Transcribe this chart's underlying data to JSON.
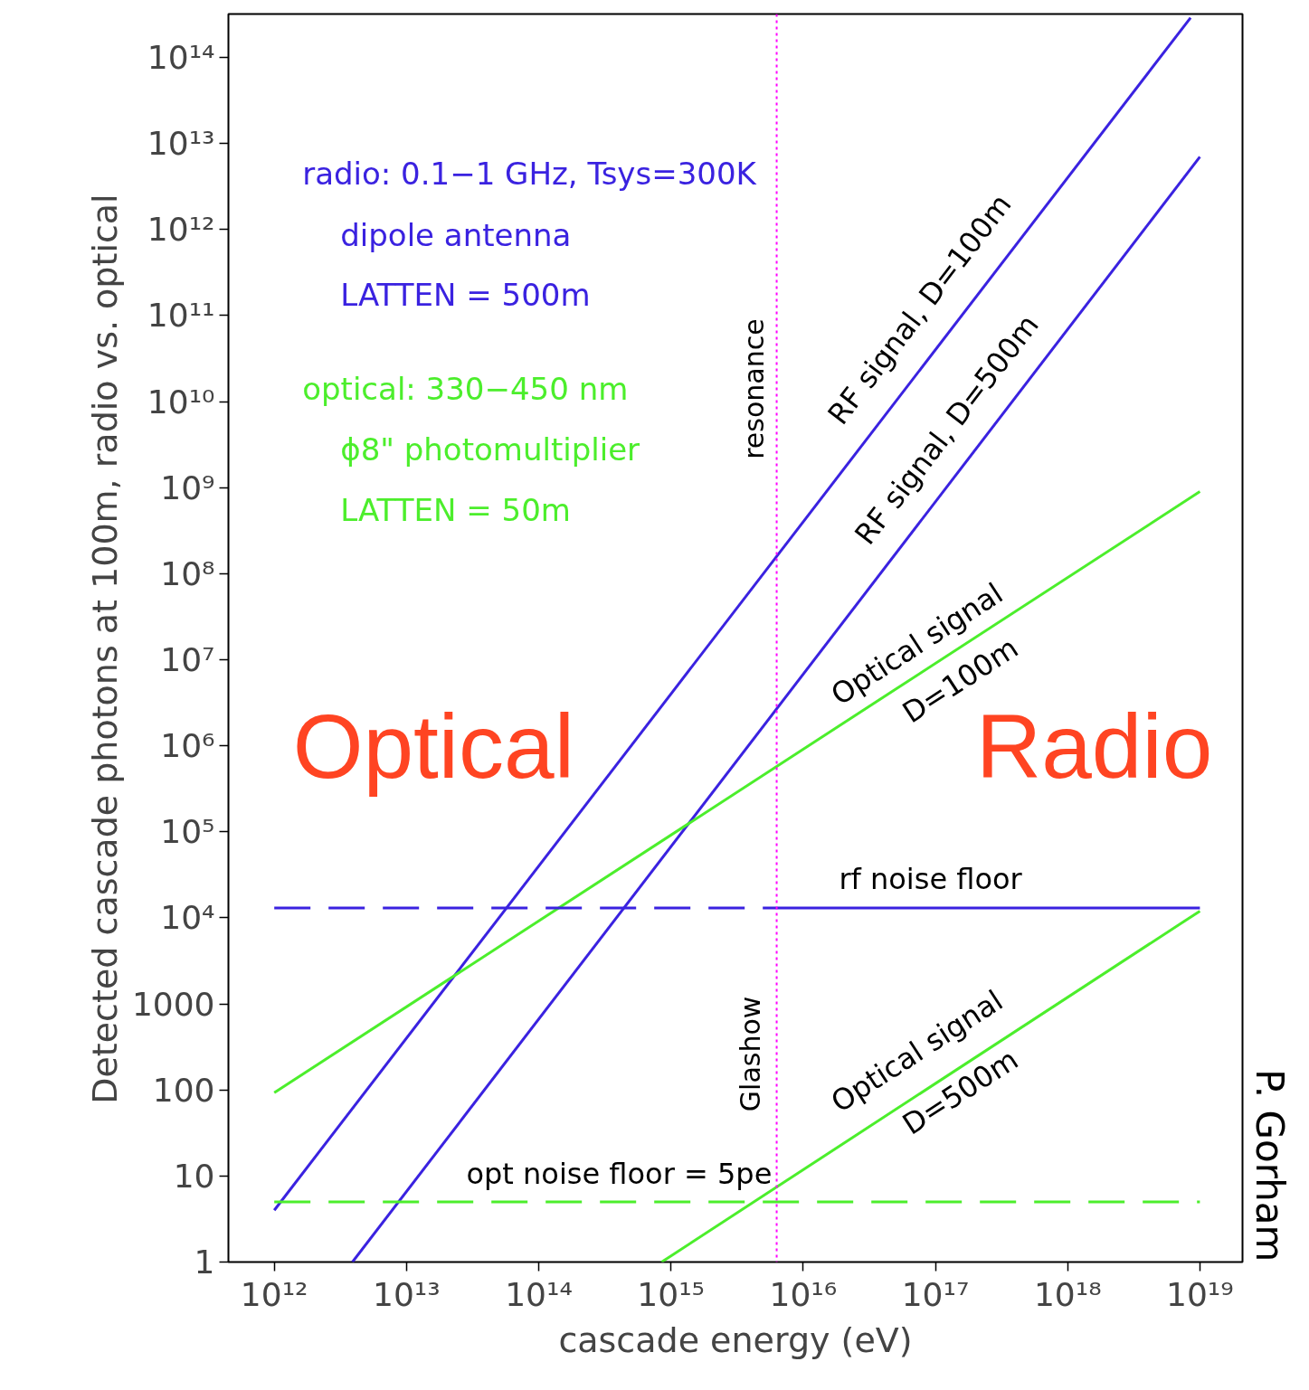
{
  "chart_data": {
    "type": "line",
    "xlabel": "cascade energy (eV)",
    "ylabel": "Detected cascade photons at 100m,   radio vs. optical",
    "log": "xy",
    "grid": false,
    "marker": "none",
    "xlim": [
      450000000000.0,
      2.1e+19
    ],
    "ylim": [
      1,
      320000000000000.0
    ],
    "xticks": [
      {
        "value": 1000000000000.0,
        "label": "10¹²"
      },
      {
        "value": 10000000000000.0,
        "label": "10¹³"
      },
      {
        "value": 100000000000000.0,
        "label": "10¹⁴"
      },
      {
        "value": 1000000000000000.0,
        "label": "10¹⁵"
      },
      {
        "value": 1e+16,
        "label": "10¹⁶"
      },
      {
        "value": 1e+17,
        "label": "10¹⁷"
      },
      {
        "value": 1e+18,
        "label": "10¹⁸"
      },
      {
        "value": 1e+19,
        "label": "10¹⁹"
      }
    ],
    "yticks": [
      1,
      10,
      100,
      1000,
      {
        "value": 10000.0,
        "label": "10⁴"
      },
      {
        "value": 100000.0,
        "label": "10⁵"
      },
      {
        "value": 1000000.0,
        "label": "10⁶"
      },
      {
        "value": 10000000.0,
        "label": "10⁷"
      },
      {
        "value": 100000000.0,
        "label": "10⁸"
      },
      {
        "value": 1000000000.0,
        "label": "10⁹"
      },
      {
        "value": 10000000000.0,
        "label": "10¹⁰"
      },
      {
        "value": 100000000000.0,
        "label": "10¹¹"
      },
      {
        "value": 1000000000000.0,
        "label": "10¹²"
      },
      {
        "value": 10000000000000.0,
        "label": "10¹³"
      },
      {
        "value": 100000000000000.0,
        "label": "10¹⁴"
      }
    ],
    "series": [
      {
        "color": "#3a22e0",
        "line_style": "solid",
        "x": [
          1000000000000.0,
          8.5e+18
        ],
        "values": [
          4,
          290000000000000.0
        ]
      },
      {
        "color": "#3a22e0",
        "line_style": "solid",
        "x": [
          3900000000000.0,
          1e+19
        ],
        "values": [
          1,
          7000000000000.0
        ]
      },
      {
        "color": "#4cee2c",
        "line_style": "solid",
        "x": [
          1000000000000.0,
          1e+19
        ],
        "values": [
          93,
          900000000.0
        ]
      },
      {
        "color": "#4cee2c",
        "line_style": "solid",
        "x": [
          850000000000000.0,
          1e+19
        ],
        "values": [
          1,
          12000.0
        ]
      },
      {
        "color": "#3a22e0",
        "line_style": "dashed",
        "x": [
          1000000000000.0,
          6300000000000000.0
        ],
        "values": [
          13000.0,
          13000.0
        ]
      },
      {
        "color": "#3a22e0",
        "line_style": "solid",
        "x": [
          6300000000000000.0,
          1e+19
        ],
        "values": [
          13000.0,
          13000.0
        ]
      },
      {
        "color": "#4cee2c",
        "line_style": "dashed",
        "x": [
          1000000000000.0,
          1e+19
        ],
        "values": [
          5,
          5
        ]
      }
    ],
    "ref_lines": [
      {
        "axis": "x",
        "value": 6300000000000000.0,
        "color": "#ff00ff",
        "line_style": "dotted"
      }
    ],
    "annotations": [
      "radio: 0.1−1 GHz, Tsys=300K",
      "dipole antenna",
      "LATTEN = 500m",
      "optical: 330−450 nm",
      "ϕ8\" photomultiplier",
      "LATTEN = 50m",
      "resonance",
      "Glashow",
      "RF signal, D=100m",
      "RF signal, D=500m",
      "Optical signal",
      "D=100m",
      "Optical signal",
      "D=500m",
      "rf noise floor",
      "opt noise floor = 5pe",
      "Optical",
      "Radio",
      "P. Gorham"
    ]
  }
}
